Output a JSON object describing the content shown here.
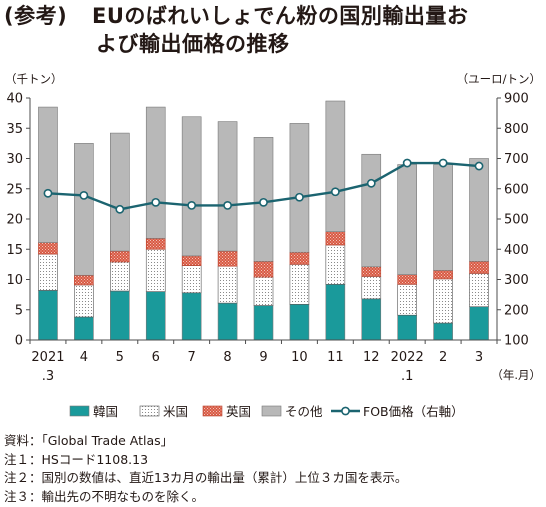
{
  "title": {
    "prefix": "(参考)",
    "line1": "EUのばれいしょでん粉の国別輸出量お",
    "line2": "よび輸出価格の推移"
  },
  "notes": [
    "資料：「Global Trade Atlas」",
    "注１：HSコード1108.13",
    "注２：国別の数値は、直近13カ月の輸出量（累計）上位３カ国を表示。",
    "注３：輸出先の不明なものを除く。"
  ],
  "chart_data": {
    "type": "bar",
    "stacked": true,
    "left_unit": "（千トン）",
    "right_unit": "（ユーロ/トン）",
    "x_unit": "（年.月）",
    "categories": [
      [
        "2021",
        ".3"
      ],
      [
        "4"
      ],
      [
        "5"
      ],
      [
        "6"
      ],
      [
        "7"
      ],
      [
        "8"
      ],
      [
        "9"
      ],
      [
        "10"
      ],
      [
        "11"
      ],
      [
        "12"
      ],
      [
        "2022",
        ".1"
      ],
      [
        "2"
      ],
      [
        "3"
      ]
    ],
    "ylim_left": [
      0,
      40
    ],
    "yticks_left": [
      0,
      5,
      10,
      15,
      20,
      25,
      30,
      35,
      40
    ],
    "ylim_right": [
      100,
      900
    ],
    "yticks_right": [
      100,
      200,
      300,
      400,
      500,
      600,
      700,
      800,
      900
    ],
    "grid": false,
    "legend_position": "bottom",
    "series": [
      {
        "name": "韓国",
        "axis": "left",
        "color": "#1a9a9b",
        "values": [
          8.2,
          3.8,
          8.1,
          8.0,
          7.8,
          6.1,
          5.7,
          5.9,
          9.2,
          6.8,
          4.1,
          2.8,
          5.5
        ]
      },
      {
        "name": "米国",
        "axis": "left",
        "color": "#ffffff",
        "pattern": "dots",
        "values": [
          6.0,
          5.3,
          4.8,
          7.0,
          4.5,
          6.1,
          4.7,
          6.6,
          6.5,
          3.7,
          5.1,
          7.3,
          5.5
        ]
      },
      {
        "name": "英国",
        "axis": "left",
        "color": "#d85a44",
        "pattern": "hatch",
        "values": [
          1.9,
          1.6,
          1.8,
          1.8,
          1.6,
          2.5,
          2.6,
          2.0,
          2.2,
          1.6,
          1.6,
          1.4,
          2.0
        ]
      },
      {
        "name": "その他",
        "axis": "left",
        "color": "#b8b8b8",
        "values": [
          22.4,
          21.8,
          19.5,
          21.7,
          23.0,
          21.4,
          20.5,
          21.3,
          21.6,
          18.6,
          18.2,
          17.5,
          17.0
        ]
      },
      {
        "name": "FOB価格（右軸）",
        "type": "line",
        "axis": "right",
        "color": "#1b6470",
        "values": [
          585,
          578,
          532,
          555,
          545,
          545,
          555,
          572,
          590,
          618,
          685,
          685,
          675
        ]
      }
    ]
  }
}
